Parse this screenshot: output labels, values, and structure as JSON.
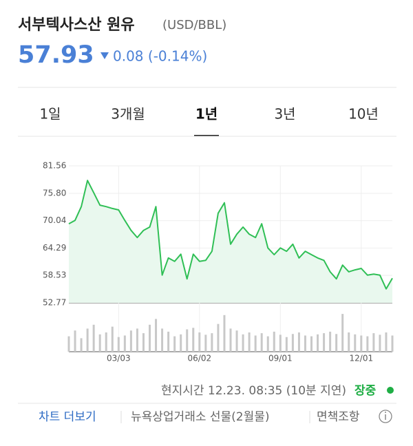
{
  "header": {
    "title": "서부텍사스산 원유",
    "unit": "(USD/BBL)",
    "price": "57.93",
    "change": "0.08 (-0.14%)"
  },
  "tabs": [
    "1일",
    "3개월",
    "1년",
    "3년",
    "10년"
  ],
  "active_tab": 2,
  "chart_data": {
    "type": "line",
    "categories": [
      null,
      null,
      null,
      null,
      null,
      null,
      null,
      null,
      "03/03",
      null,
      null,
      null,
      null,
      null,
      null,
      null,
      null,
      null,
      null,
      null,
      null,
      "06/02",
      null,
      null,
      null,
      null,
      null,
      null,
      null,
      null,
      null,
      null,
      null,
      null,
      "09/01",
      null,
      null,
      null,
      null,
      null,
      null,
      null,
      null,
      null,
      null,
      null,
      null,
      "12/01",
      null,
      null,
      null,
      null,
      null
    ],
    "series": [
      {
        "name": "WTI",
        "color": "#2fbf55",
        "values": [
          69.4,
          70.1,
          73.0,
          78.5,
          75.9,
          73.3,
          73.0,
          72.6,
          72.3,
          70.1,
          68.0,
          66.5,
          68.0,
          68.7,
          73.0,
          58.6,
          62.2,
          61.5,
          63.0,
          57.8,
          63.0,
          61.5,
          61.7,
          63.6,
          71.6,
          73.8,
          65.1,
          67.2,
          68.7,
          67.2,
          66.5,
          69.4,
          64.3,
          62.9,
          64.3,
          63.6,
          65.1,
          62.2,
          63.6,
          62.9,
          62.2,
          61.7,
          59.3,
          57.8,
          60.7,
          59.3,
          59.7,
          60.0,
          58.6,
          58.8,
          58.6,
          55.7,
          57.93
        ]
      }
    ],
    "ylim": [
      52.77,
      81.56
    ],
    "yticks": [
      {
        "value": 81.56,
        "label": "81.56"
      },
      {
        "value": 75.8,
        "label": "75.80"
      },
      {
        "value": 70.04,
        "label": "70.04"
      },
      {
        "value": 64.29,
        "label": "64.29"
      },
      {
        "value": 58.53,
        "label": "58.53"
      },
      {
        "value": 52.77,
        "label": "52.77"
      }
    ],
    "grid": true,
    "fill_color": "#e9f8ee",
    "volume": {
      "color": "#c8c8c8",
      "ylim": [
        0,
        100
      ],
      "values": [
        40,
        55,
        35,
        60,
        70,
        45,
        50,
        65,
        38,
        42,
        55,
        60,
        48,
        70,
        85,
        60,
        52,
        40,
        45,
        58,
        62,
        50,
        44,
        48,
        72,
        95,
        60,
        55,
        45,
        50,
        42,
        48,
        40,
        52,
        44,
        38,
        46,
        50,
        42,
        40,
        45,
        48,
        52,
        46,
        98,
        50,
        45,
        42,
        40,
        48,
        44,
        50,
        42
      ]
    }
  },
  "footer": {
    "time": "현지시간 12.23. 08:35 (10분 지연)",
    "status": "장중",
    "more": "차트 더보기",
    "exchange": "뉴욕상업거래소 선물(2월물)",
    "disclaimer": "면책조항"
  }
}
